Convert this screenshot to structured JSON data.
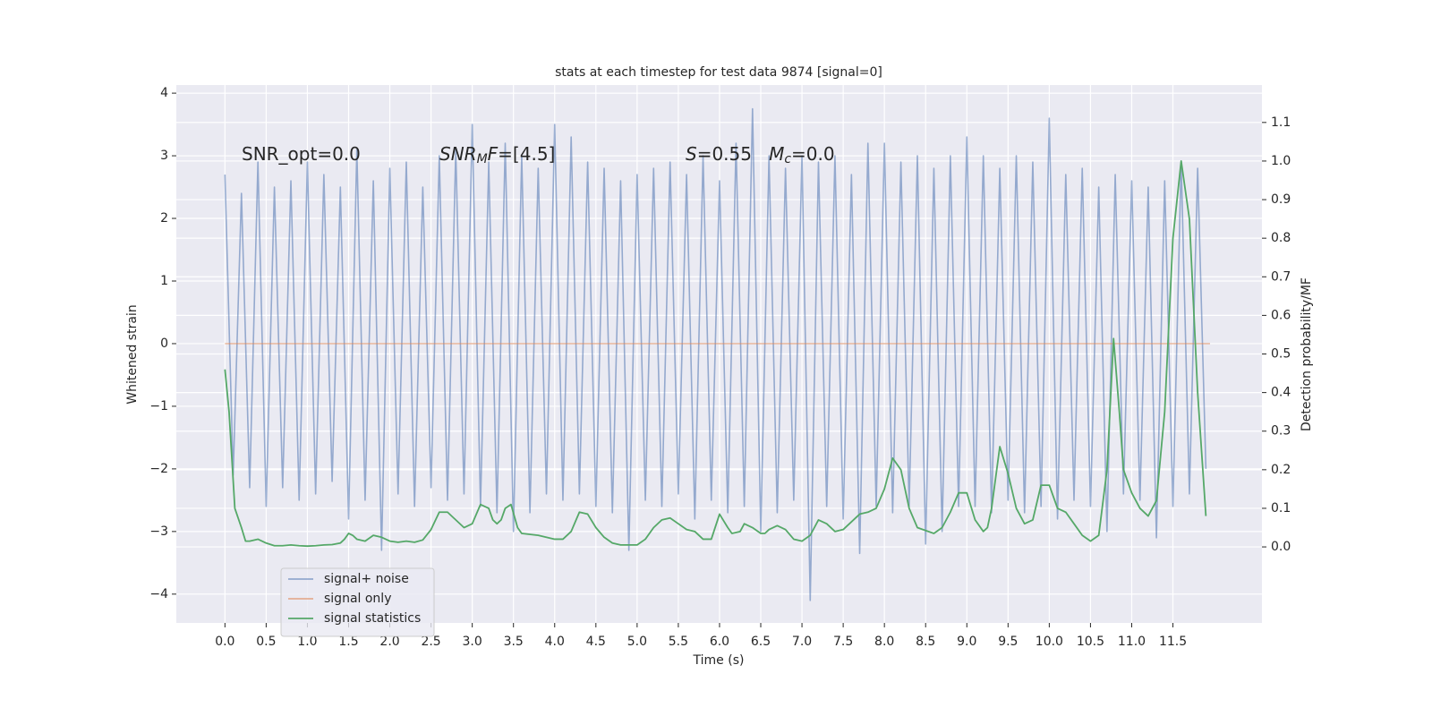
{
  "chart_data": {
    "type": "line",
    "title": "stats at each timestep for test data 9874 [signal=0]",
    "xlabel": "Time (s)",
    "ylabel": "Whitened strain",
    "y2label": "Detection probability/MF",
    "xlim": [
      -0.59,
      12.58
    ],
    "ylim": [
      -4.46,
      4.13
    ],
    "y2lim": [
      -0.197,
      1.197
    ],
    "grid": true,
    "legend": "lower left",
    "xticks": [
      {
        "value": 0,
        "label": "0.0"
      },
      {
        "value": 0.5,
        "label": "0.5"
      },
      {
        "value": 1,
        "label": "1.0"
      },
      {
        "value": 1.5,
        "label": "1.5"
      },
      {
        "value": 2,
        "label": "2.0"
      },
      {
        "value": 2.5,
        "label": "2.5"
      },
      {
        "value": 3,
        "label": "3.0"
      },
      {
        "value": 3.5,
        "label": "3.5"
      },
      {
        "value": 4,
        "label": "4.0"
      },
      {
        "value": 4.5,
        "label": "4.5"
      },
      {
        "value": 5,
        "label": "5.0"
      },
      {
        "value": 5.5,
        "label": "5.5"
      },
      {
        "value": 6,
        "label": "6.0"
      },
      {
        "value": 6.5,
        "label": "6.5"
      },
      {
        "value": 7,
        "label": "7.0"
      },
      {
        "value": 7.5,
        "label": "7.5"
      },
      {
        "value": 8,
        "label": "8.0"
      },
      {
        "value": 8.5,
        "label": "8.5"
      },
      {
        "value": 9,
        "label": "9.0"
      },
      {
        "value": 9.5,
        "label": "9.5"
      },
      {
        "value": 10,
        "label": "10.0"
      },
      {
        "value": 10.5,
        "label": "10.5"
      },
      {
        "value": 11,
        "label": "11.0"
      },
      {
        "value": 11.5,
        "label": "11.5"
      }
    ],
    "yticks": [
      {
        "value": -4,
        "label": "−4"
      },
      {
        "value": -3,
        "label": "−3"
      },
      {
        "value": -2,
        "label": "−2"
      },
      {
        "value": -1,
        "label": "−1"
      },
      0,
      1,
      2,
      3,
      4
    ],
    "y2ticks": [
      {
        "value": 0,
        "label": "0.0"
      },
      {
        "value": 0.1,
        "label": "0.1"
      },
      {
        "value": 0.2,
        "label": "0.2"
      },
      {
        "value": 0.3,
        "label": "0.3"
      },
      {
        "value": 0.4,
        "label": "0.4"
      },
      {
        "value": 0.5,
        "label": "0.5"
      },
      {
        "value": 0.6,
        "label": "0.6"
      },
      {
        "value": 0.7,
        "label": "0.7"
      },
      {
        "value": 0.8,
        "label": "0.8"
      },
      {
        "value": 0.9,
        "label": "0.9"
      },
      {
        "value": 1.0,
        "label": "1.0"
      },
      {
        "value": 1.1,
        "label": "1.1"
      }
    ],
    "annotations": [
      [
        {
          "text": "SNR_opt=0.0",
          "style": "normal"
        }
      ],
      [
        {
          "text": "SNR",
          "style": "italic"
        },
        {
          "text": "M",
          "style": "sub"
        },
        {
          "text": "F",
          "style": "italic"
        },
        {
          "text": "=[4.5]",
          "style": "normal"
        }
      ],
      [
        {
          "text": "S",
          "style": "italic"
        },
        {
          "text": "=0.55   ",
          "style": "normal"
        },
        {
          "text": "M",
          "style": "italic"
        },
        {
          "text": "c",
          "style": "sub"
        },
        {
          "text": "=0.0",
          "style": "normal"
        }
      ]
    ],
    "series": [
      {
        "name": "signal+ noise",
        "color": "#4c72b0",
        "axis": "y",
        "x": [
          0.0,
          0.1,
          0.2,
          0.3,
          0.4,
          0.5,
          0.6,
          0.7,
          0.8,
          0.9,
          1.0,
          1.1,
          1.2,
          1.3,
          1.4,
          1.5,
          1.6,
          1.7,
          1.8,
          1.9,
          2.0,
          2.1,
          2.2,
          2.3,
          2.4,
          2.5,
          2.6,
          2.7,
          2.8,
          2.9,
          3.0,
          3.1,
          3.2,
          3.3,
          3.4,
          3.5,
          3.6,
          3.7,
          3.8,
          3.9,
          4.0,
          4.1,
          4.2,
          4.3,
          4.4,
          4.5,
          4.6,
          4.7,
          4.8,
          4.9,
          5.0,
          5.1,
          5.2,
          5.3,
          5.4,
          5.5,
          5.6,
          5.7,
          5.8,
          5.9,
          6.0,
          6.1,
          6.2,
          6.3,
          6.4,
          6.5,
          6.6,
          6.7,
          6.8,
          6.9,
          7.0,
          7.1,
          7.2,
          7.3,
          7.4,
          7.5,
          7.6,
          7.7,
          7.8,
          7.9,
          8.0,
          8.1,
          8.2,
          8.3,
          8.4,
          8.5,
          8.6,
          8.7,
          8.8,
          8.9,
          9.0,
          9.1,
          9.2,
          9.3,
          9.4,
          9.5,
          9.6,
          9.7,
          9.8,
          9.9,
          10.0,
          10.1,
          10.2,
          10.3,
          10.4,
          10.5,
          10.6,
          10.7,
          10.8,
          10.9,
          11.0,
          11.1,
          11.2,
          11.3,
          11.4,
          11.5,
          11.6,
          11.7,
          11.8,
          11.9
        ],
        "values": [
          2.7,
          -2.1,
          2.4,
          -2.3,
          2.9,
          -2.6,
          2.5,
          -2.3,
          2.6,
          -2.5,
          2.9,
          -2.4,
          2.7,
          -2.2,
          2.5,
          -2.8,
          3.1,
          -2.5,
          2.6,
          -3.3,
          2.8,
          -2.4,
          2.9,
          -2.6,
          2.5,
          -2.3,
          3.0,
          -2.5,
          3.1,
          -2.4,
          3.5,
          -2.6,
          2.9,
          -2.7,
          3.2,
          -3.0,
          3.0,
          -2.7,
          2.8,
          -2.4,
          3.5,
          -2.5,
          3.3,
          -2.4,
          2.9,
          -2.6,
          2.8,
          -2.7,
          2.6,
          -3.3,
          2.7,
          -2.5,
          2.8,
          -2.6,
          2.9,
          -2.4,
          2.7,
          -2.8,
          3.0,
          -2.5,
          2.6,
          -2.7,
          3.2,
          -2.6,
          3.75,
          -3.0,
          3.0,
          -2.7,
          2.8,
          -2.5,
          3.0,
          -4.1,
          2.9,
          -2.6,
          3.0,
          -2.8,
          2.7,
          -3.35,
          3.2,
          -2.6,
          3.2,
          -2.7,
          2.9,
          -2.6,
          3.0,
          -3.2,
          2.8,
          -3.0,
          3.0,
          -2.6,
          3.3,
          -2.6,
          3.0,
          -2.7,
          2.8,
          -2.5,
          3.0,
          -2.7,
          2.9,
          -2.6,
          3.6,
          -2.8,
          2.7,
          -2.5,
          2.8,
          -2.6,
          2.5,
          -3.0,
          2.7,
          -2.4,
          2.6,
          -2.5,
          2.5,
          -3.1,
          2.6,
          -2.6,
          2.9,
          -2.4,
          2.8,
          -2.0
        ]
      },
      {
        "name": "signal only",
        "color": "#dd8452",
        "axis": "y",
        "x": [
          0.0,
          11.95
        ],
        "values": [
          0,
          0
        ]
      },
      {
        "name": "signal statistics",
        "color": "#55a868",
        "axis": "y2",
        "x": [
          0.0,
          0.05,
          0.12,
          0.2,
          0.25,
          0.3,
          0.4,
          0.5,
          0.6,
          0.7,
          0.8,
          0.9,
          1.0,
          1.1,
          1.2,
          1.3,
          1.4,
          1.45,
          1.5,
          1.55,
          1.6,
          1.7,
          1.8,
          1.9,
          2.0,
          2.1,
          2.2,
          2.3,
          2.4,
          2.5,
          2.6,
          2.7,
          2.8,
          2.9,
          3.0,
          3.1,
          3.2,
          3.25,
          3.3,
          3.35,
          3.4,
          3.47,
          3.55,
          3.6,
          3.8,
          4.0,
          4.1,
          4.2,
          4.3,
          4.4,
          4.5,
          4.6,
          4.7,
          4.8,
          5.0,
          5.1,
          5.2,
          5.3,
          5.4,
          5.5,
          5.6,
          5.7,
          5.8,
          5.9,
          6.0,
          6.1,
          6.15,
          6.25,
          6.3,
          6.4,
          6.5,
          6.55,
          6.6,
          6.7,
          6.8,
          6.9,
          7.0,
          7.1,
          7.2,
          7.3,
          7.4,
          7.5,
          7.6,
          7.7,
          7.8,
          7.9,
          8.0,
          8.1,
          8.2,
          8.3,
          8.4,
          8.6,
          8.7,
          8.8,
          8.9,
          9.0,
          9.1,
          9.2,
          9.25,
          9.3,
          9.4,
          9.5,
          9.6,
          9.7,
          9.8,
          9.9,
          10.0,
          10.1,
          10.2,
          10.3,
          10.4,
          10.5,
          10.6,
          10.7,
          10.78,
          10.85,
          10.9,
          11.0,
          11.1,
          11.2,
          11.3,
          11.4,
          11.5,
          11.6,
          11.7,
          11.8,
          11.9
        ],
        "values": [
          0.46,
          0.35,
          0.1,
          0.05,
          0.015,
          0.015,
          0.02,
          0.01,
          0.003,
          0.003,
          0.005,
          0.003,
          0.002,
          0.003,
          0.005,
          0.006,
          0.01,
          0.02,
          0.035,
          0.03,
          0.02,
          0.015,
          0.03,
          0.025,
          0.015,
          0.012,
          0.015,
          0.012,
          0.018,
          0.045,
          0.09,
          0.09,
          0.07,
          0.05,
          0.06,
          0.11,
          0.1,
          0.07,
          0.06,
          0.07,
          0.1,
          0.11,
          0.05,
          0.035,
          0.03,
          0.02,
          0.02,
          0.04,
          0.09,
          0.085,
          0.05,
          0.025,
          0.01,
          0.005,
          0.005,
          0.02,
          0.05,
          0.07,
          0.075,
          0.06,
          0.045,
          0.04,
          0.02,
          0.02,
          0.085,
          0.05,
          0.035,
          0.04,
          0.06,
          0.05,
          0.035,
          0.035,
          0.045,
          0.055,
          0.045,
          0.02,
          0.015,
          0.03,
          0.07,
          0.06,
          0.04,
          0.045,
          0.065,
          0.085,
          0.09,
          0.1,
          0.15,
          0.23,
          0.2,
          0.1,
          0.05,
          0.035,
          0.05,
          0.09,
          0.14,
          0.14,
          0.07,
          0.04,
          0.05,
          0.1,
          0.26,
          0.19,
          0.1,
          0.06,
          0.07,
          0.16,
          0.16,
          0.1,
          0.09,
          0.06,
          0.03,
          0.015,
          0.03,
          0.2,
          0.54,
          0.35,
          0.2,
          0.14,
          0.1,
          0.08,
          0.12,
          0.35,
          0.8,
          1.0,
          0.85,
          0.4,
          0.08
        ]
      }
    ]
  }
}
